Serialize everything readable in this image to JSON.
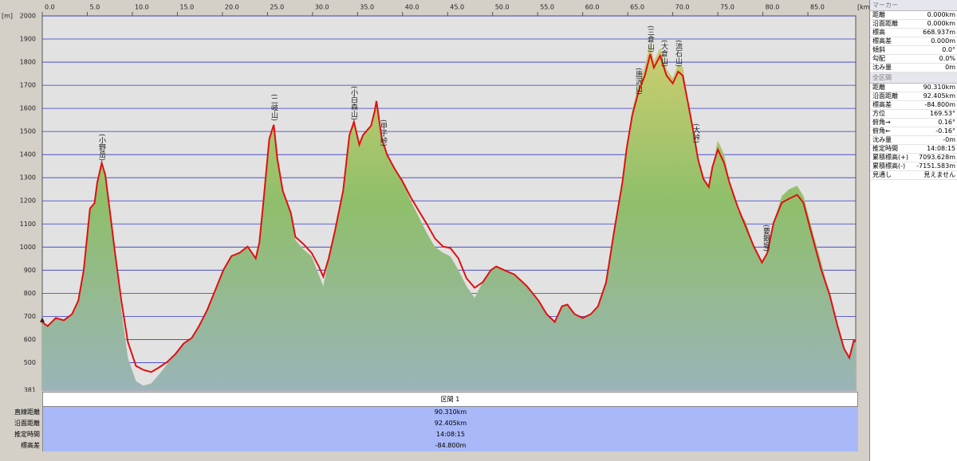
{
  "chart_data": {
    "type": "area-line",
    "y_label": "[m]",
    "x_label": "[km]",
    "xlim": [
      0,
      90.31
    ],
    "ylim": [
      381,
      2000
    ],
    "xticks": [
      {
        "value": 0,
        "label": "0.0"
      },
      {
        "value": 5,
        "label": "5.0"
      },
      {
        "value": 10,
        "label": "10.0"
      },
      {
        "value": 15,
        "label": "15.0"
      },
      {
        "value": 20,
        "label": "20.0"
      },
      {
        "value": 25,
        "label": "25.0"
      },
      {
        "value": 30,
        "label": "30.0"
      },
      {
        "value": 35,
        "label": "35.0"
      },
      {
        "value": 40,
        "label": "40.0"
      },
      {
        "value": 45,
        "label": "45.0"
      },
      {
        "value": 50,
        "label": "50.0"
      },
      {
        "value": 55,
        "label": "55.0"
      },
      {
        "value": 60,
        "label": "60.0"
      },
      {
        "value": 65,
        "label": "65.0"
      },
      {
        "value": 70,
        "label": "70.0"
      },
      {
        "value": 75,
        "label": "75.0"
      },
      {
        "value": 80,
        "label": "80.0"
      },
      {
        "value": 85,
        "label": "85.0"
      }
    ],
    "yticks": [
      381,
      500,
      600,
      700,
      800,
      900,
      1000,
      1100,
      1200,
      1300,
      1400,
      1500,
      1600,
      1700,
      1800,
      1900,
      2000
    ],
    "grid": true,
    "x": [
      0,
      0.6,
      1.5,
      2.4,
      3.3,
      4.0,
      4.6,
      5.3,
      5.8,
      6.1,
      6.6,
      7.0,
      7.5,
      8.1,
      8.8,
      9.5,
      10.4,
      11.2,
      12.1,
      13.0,
      13.9,
      14.8,
      15.7,
      16.6,
      17.4,
      18.3,
      19.2,
      20.1,
      21.0,
      21.9,
      22.8,
      23.7,
      24.1,
      24.5,
      25.2,
      25.7,
      26.1,
      26.7,
      27.6,
      28.1,
      29.0,
      29.9,
      30.7,
      31.2,
      31.8,
      32.5,
      33.4,
      34.1,
      34.6,
      35.2,
      35.6,
      36.5,
      36.9,
      37.1,
      37.7,
      38.3,
      39.1,
      40.0,
      40.9,
      41.8,
      42.7,
      43.6,
      44.5,
      45.3,
      46.2,
      47.1,
      48.0,
      48.9,
      49.8,
      50.4,
      51.3,
      52.4,
      53.8,
      55.1,
      56.0,
      56.9,
      57.7,
      58.3,
      59.1,
      60.0,
      60.9,
      61.7,
      62.6,
      63.5,
      64.4,
      64.9,
      65.5,
      66.2,
      66.9,
      67.5,
      67.9,
      68.6,
      69.3,
      70.0,
      70.6,
      71.1,
      71.7,
      72.2,
      72.8,
      73.4,
      74.0,
      74.4,
      75.0,
      75.7,
      76.3,
      77.2,
      78.1,
      79.0,
      79.9,
      80.5,
      81.2,
      82.1,
      82.9,
      83.8,
      84.5,
      85.5,
      86.5,
      87.4,
      88.3,
      89.0,
      89.6,
      90.1,
      90.31
    ],
    "series": [
      {
        "color": "#8fbf6a",
        "fill": true,
        "values": [
          675,
          658,
          693,
          683,
          710,
          768,
          900,
          1167,
          1190,
          1278,
          1375,
          1312,
          1157,
          950,
          720,
          520,
          420,
          400,
          410,
          450,
          495,
          538,
          583,
          607,
          658,
          727,
          813,
          900,
          961,
          975,
          1002,
          951,
          1019,
          1174,
          1467,
          1529,
          1381,
          1243,
          1147,
          1030,
          990,
          960,
          880,
          830,
          951,
          1071,
          1243,
          1484,
          1542,
          1443,
          1484,
          1525,
          1587,
          1625,
          1467,
          1398,
          1340,
          1284,
          1200,
          1130,
          1060,
          1000,
          975,
          960,
          900,
          830,
          780,
          848,
          900,
          916,
          900,
          882,
          831,
          768,
          710,
          676,
          744,
          751,
          710,
          693,
          710,
          744,
          848,
          1071,
          1278,
          1432,
          1590,
          1700,
          1780,
          1880,
          1800,
          1860,
          1770,
          1730,
          1790,
          1780,
          1622,
          1518,
          1381,
          1295,
          1260,
          1346,
          1460,
          1400,
          1278,
          1160,
          1110,
          1002,
          933,
          975,
          1106,
          1220,
          1250,
          1265,
          1220,
          1070,
          930,
          796,
          658,
          562,
          521,
          596,
          590
        ]
      },
      {
        "color": "#e01010",
        "fill": false,
        "values": [
          675,
          658,
          693,
          683,
          710,
          768,
          900,
          1167,
          1190,
          1278,
          1364,
          1312,
          1157,
          968,
          762,
          590,
          486,
          469,
          459,
          480,
          504,
          538,
          583,
          607,
          658,
          727,
          813,
          900,
          961,
          975,
          1002,
          951,
          1019,
          1174,
          1467,
          1529,
          1381,
          1243,
          1147,
          1044,
          1013,
          975,
          916,
          872,
          951,
          1071,
          1243,
          1484,
          1542,
          1443,
          1484,
          1525,
          1587,
          1632,
          1467,
          1398,
          1340,
          1284,
          1216,
          1157,
          1099,
          1037,
          1002,
          996,
          951,
          865,
          824,
          848,
          900,
          916,
          900,
          882,
          831,
          768,
          710,
          676,
          744,
          751,
          710,
          693,
          710,
          744,
          848,
          1071,
          1278,
          1432,
          1570,
          1673,
          1742,
          1835,
          1776,
          1828,
          1742,
          1708,
          1759,
          1742,
          1622,
          1518,
          1381,
          1295,
          1260,
          1346,
          1422,
          1364,
          1278,
          1174,
          1088,
          1002,
          933,
          975,
          1106,
          1192,
          1209,
          1226,
          1192,
          1044,
          900,
          796,
          658,
          562,
          521,
          596,
          590
        ]
      }
    ],
    "annotations": [
      "(小野岳)",
      "(二岐山)",
      "(小白森山)",
      "(甲子峠)",
      "(唐沢山)",
      "(三倉山)",
      "(大倉山)",
      "(流石山)",
      "(大峠)",
      "(要銀坂)"
    ]
  },
  "sidebar": {
    "marker": {
      "title": "マーカー",
      "rows": [
        [
          "距離",
          "0.000km"
        ],
        [
          "沿面距離",
          "0.000km"
        ],
        [
          "標高",
          "668.937m"
        ],
        [
          "標高差",
          "0.000m"
        ],
        [
          "傾斜",
          "0.0°"
        ],
        [
          "勾配",
          "0.0%"
        ],
        [
          "沈み量",
          "0m"
        ]
      ]
    },
    "total": {
      "title": "全区間",
      "rows": [
        [
          "距離",
          "90.310km"
        ],
        [
          "沿面距離",
          "92.405km"
        ],
        [
          "標高差",
          "-84.800m"
        ],
        [
          "方位",
          "169.53°"
        ],
        [
          "俯角→",
          "0.16°"
        ],
        [
          "俯角←",
          "-0.16°"
        ],
        [
          "沈み量",
          "-0m"
        ],
        [
          "推定時間",
          "14:08:15"
        ],
        [
          "累積標高(+)",
          "7093.628m"
        ],
        [
          "累積標高(-)",
          "-7151.583m"
        ],
        [
          "見通し",
          "見えません"
        ]
      ]
    }
  },
  "table": {
    "header": "区間 1",
    "rows": [
      [
        "直線距離",
        "90.310km"
      ],
      [
        "沿面距離",
        "92.405km"
      ],
      [
        "推定時間",
        "14:08:15"
      ],
      [
        "標高差",
        "-84.800m"
      ]
    ]
  }
}
